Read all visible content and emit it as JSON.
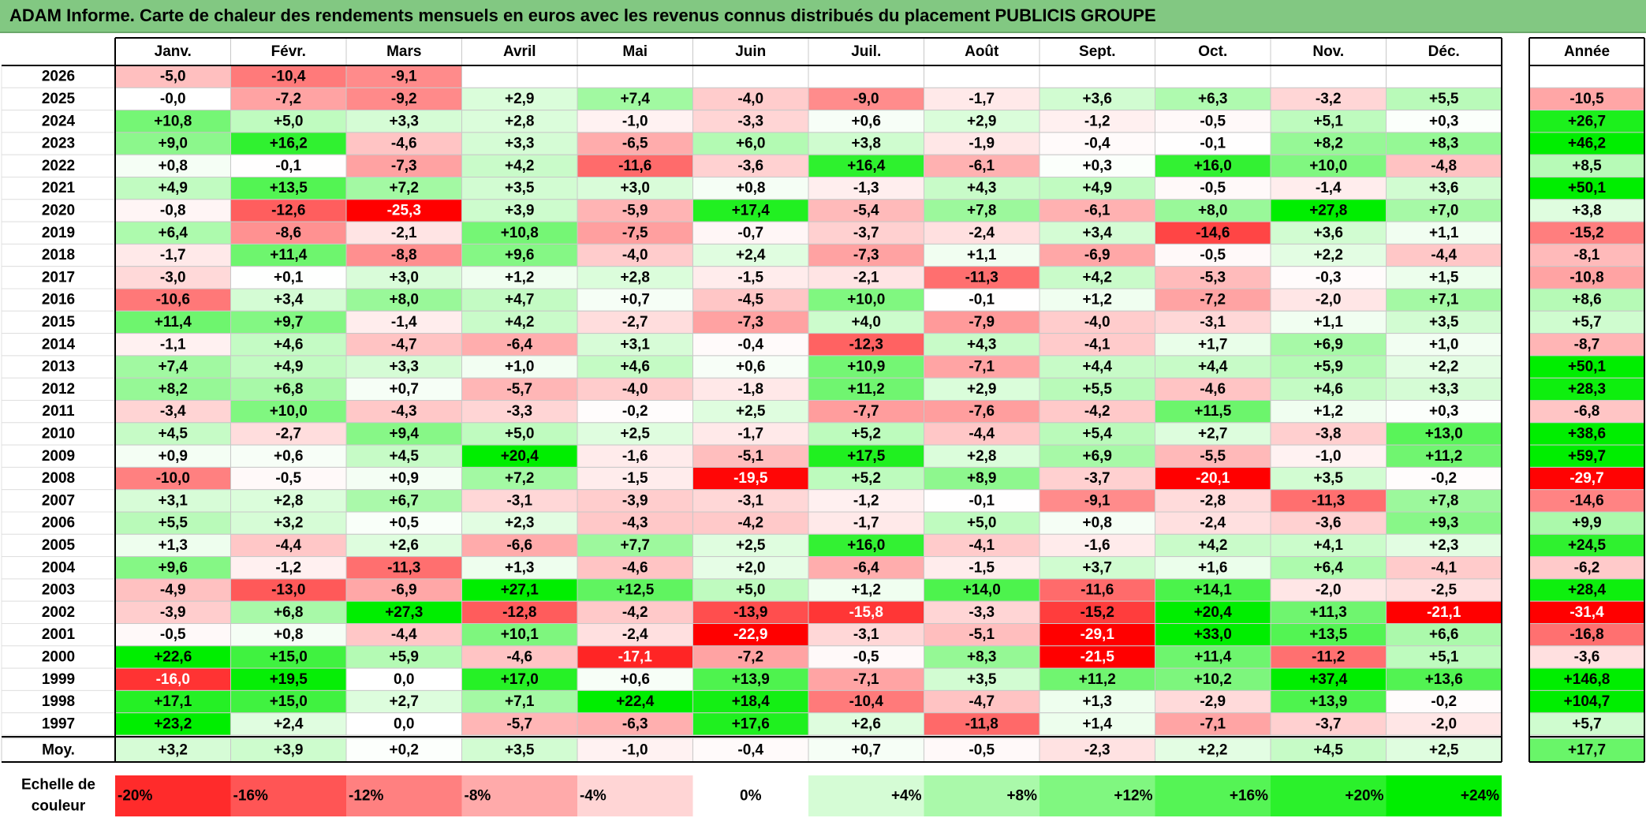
{
  "title": "ADAM Informe. Carte de chaleur des rendements mensuels en euros avec les revenus connus distribués du placement PUBLICIS GROUPE",
  "chart_data": {
    "type": "heatmap",
    "title": "ADAM Informe. Carte de chaleur des rendements mensuels en euros avec les revenus connus distribués du placement PUBLICIS GROUPE",
    "months": [
      "Janv.",
      "Févr.",
      "Mars",
      "Avril",
      "Mai",
      "Juin",
      "Juil.",
      "Août",
      "Sept.",
      "Oct.",
      "Nov.",
      "Déc."
    ],
    "year_header": "Année",
    "avg_label": "Moy.",
    "rows": [
      {
        "year": "2026",
        "values": [
          "-5,0",
          "-10,4",
          "-9,1",
          "",
          "",
          "",
          "",
          "",
          "",
          "",
          "",
          ""
        ],
        "annual": ""
      },
      {
        "year": "2025",
        "values": [
          "-0,0",
          "-7,2",
          "-9,2",
          "+2,9",
          "+7,4",
          "-4,0",
          "-9,0",
          "-1,7",
          "+3,6",
          "+6,3",
          "-3,2",
          "+5,5"
        ],
        "annual": "-10,5"
      },
      {
        "year": "2024",
        "values": [
          "+10,8",
          "+5,0",
          "+3,3",
          "+2,8",
          "-1,0",
          "-3,3",
          "+0,6",
          "+2,9",
          "-1,2",
          "-0,5",
          "+5,1",
          "+0,3"
        ],
        "annual": "+26,7"
      },
      {
        "year": "2023",
        "values": [
          "+9,0",
          "+16,2",
          "-4,6",
          "+3,3",
          "-6,5",
          "+6,0",
          "+3,8",
          "-1,9",
          "-0,4",
          "-0,1",
          "+8,2",
          "+8,3"
        ],
        "annual": "+46,2"
      },
      {
        "year": "2022",
        "values": [
          "+0,8",
          "-0,1",
          "-7,3",
          "+4,2",
          "-11,6",
          "-3,6",
          "+16,4",
          "-6,1",
          "+0,3",
          "+16,0",
          "+10,0",
          "-4,8"
        ],
        "annual": "+8,5"
      },
      {
        "year": "2021",
        "values": [
          "+4,9",
          "+13,5",
          "+7,2",
          "+3,5",
          "+3,0",
          "+0,8",
          "-1,3",
          "+4,3",
          "+4,9",
          "-0,5",
          "-1,4",
          "+3,6"
        ],
        "annual": "+50,1"
      },
      {
        "year": "2020",
        "values": [
          "-0,8",
          "-12,6",
          "-25,3",
          "+3,9",
          "-5,9",
          "+17,4",
          "-5,4",
          "+7,8",
          "-6,1",
          "+8,0",
          "+27,8",
          "+7,0"
        ],
        "annual": "+3,8"
      },
      {
        "year": "2019",
        "values": [
          "+6,4",
          "-8,6",
          "-2,1",
          "+10,8",
          "-7,5",
          "-0,7",
          "-3,7",
          "-2,4",
          "+3,4",
          "-14,6",
          "+3,6",
          "+1,1"
        ],
        "annual": "-15,2"
      },
      {
        "year": "2018",
        "values": [
          "-1,7",
          "+11,4",
          "-8,8",
          "+9,6",
          "-4,0",
          "+2,4",
          "-7,3",
          "+1,1",
          "-6,9",
          "-0,5",
          "+2,2",
          "-4,4"
        ],
        "annual": "-8,1"
      },
      {
        "year": "2017",
        "values": [
          "-3,0",
          "+0,1",
          "+3,0",
          "+1,2",
          "+2,8",
          "-1,5",
          "-2,1",
          "-11,3",
          "+4,2",
          "-5,3",
          "-0,3",
          "+1,5"
        ],
        "annual": "-10,8"
      },
      {
        "year": "2016",
        "values": [
          "-10,6",
          "+3,4",
          "+8,0",
          "+4,7",
          "+0,7",
          "-4,5",
          "+10,0",
          "-0,1",
          "+1,2",
          "-7,2",
          "-2,0",
          "+7,1"
        ],
        "annual": "+8,6"
      },
      {
        "year": "2015",
        "values": [
          "+11,4",
          "+9,7",
          "-1,4",
          "+4,2",
          "-2,7",
          "-7,3",
          "+4,0",
          "-7,9",
          "-4,0",
          "-3,1",
          "+1,1",
          "+3,5"
        ],
        "annual": "+5,7"
      },
      {
        "year": "2014",
        "values": [
          "-1,1",
          "+4,6",
          "-4,7",
          "-6,4",
          "+3,1",
          "-0,4",
          "-12,3",
          "+4,3",
          "-4,1",
          "+1,7",
          "+6,9",
          "+1,0"
        ],
        "annual": "-8,7"
      },
      {
        "year": "2013",
        "values": [
          "+7,4",
          "+4,9",
          "+3,3",
          "+1,0",
          "+4,6",
          "+0,6",
          "+10,9",
          "-7,1",
          "+4,4",
          "+4,4",
          "+5,9",
          "+2,2"
        ],
        "annual": "+50,1"
      },
      {
        "year": "2012",
        "values": [
          "+8,2",
          "+6,8",
          "+0,7",
          "-5,7",
          "-4,0",
          "-1,8",
          "+11,2",
          "+2,9",
          "+5,5",
          "-4,6",
          "+4,6",
          "+3,3"
        ],
        "annual": "+28,3"
      },
      {
        "year": "2011",
        "values": [
          "-3,4",
          "+10,0",
          "-4,3",
          "-3,3",
          "-0,2",
          "+2,5",
          "-7,7",
          "-7,6",
          "-4,2",
          "+11,5",
          "+1,2",
          "+0,3"
        ],
        "annual": "-6,8"
      },
      {
        "year": "2010",
        "values": [
          "+4,5",
          "-2,7",
          "+9,4",
          "+5,0",
          "+2,5",
          "-1,7",
          "+5,2",
          "-4,4",
          "+5,4",
          "+2,7",
          "-3,8",
          "+13,0"
        ],
        "annual": "+38,6"
      },
      {
        "year": "2009",
        "values": [
          "+0,9",
          "+0,6",
          "+4,5",
          "+20,4",
          "-1,6",
          "-5,1",
          "+17,5",
          "+2,8",
          "+6,9",
          "-5,5",
          "-1,0",
          "+11,2"
        ],
        "annual": "+59,7"
      },
      {
        "year": "2008",
        "values": [
          "-10,0",
          "-0,5",
          "+0,9",
          "+7,2",
          "-1,5",
          "-19,5",
          "+5,2",
          "+8,9",
          "-3,7",
          "-20,1",
          "+3,5",
          "-0,2"
        ],
        "annual": "-29,7"
      },
      {
        "year": "2007",
        "values": [
          "+3,1",
          "+2,8",
          "+6,7",
          "-3,1",
          "-3,9",
          "-3,1",
          "-1,2",
          "-0,1",
          "-9,1",
          "-2,8",
          "-11,3",
          "+7,8"
        ],
        "annual": "-14,6"
      },
      {
        "year": "2006",
        "values": [
          "+5,5",
          "+3,2",
          "+0,5",
          "+2,3",
          "-4,3",
          "-4,2",
          "-1,7",
          "+5,0",
          "+0,8",
          "-2,4",
          "-3,6",
          "+9,3"
        ],
        "annual": "+9,9"
      },
      {
        "year": "2005",
        "values": [
          "+1,3",
          "-4,4",
          "+2,6",
          "-6,6",
          "+7,7",
          "+2,5",
          "+16,0",
          "-4,1",
          "-1,6",
          "+4,2",
          "+4,1",
          "+2,3"
        ],
        "annual": "+24,5"
      },
      {
        "year": "2004",
        "values": [
          "+9,6",
          "-1,2",
          "-11,3",
          "+1,3",
          "-4,6",
          "+2,0",
          "-6,4",
          "-1,5",
          "+3,7",
          "+1,6",
          "+6,4",
          "-4,1"
        ],
        "annual": "-6,2"
      },
      {
        "year": "2003",
        "values": [
          "-4,9",
          "-13,0",
          "-6,9",
          "+27,1",
          "+12,5",
          "+5,0",
          "+1,2",
          "+14,0",
          "-11,6",
          "+14,1",
          "-2,0",
          "-2,5"
        ],
        "annual": "+28,4"
      },
      {
        "year": "2002",
        "values": [
          "-3,9",
          "+6,8",
          "+27,3",
          "-12,8",
          "-4,2",
          "-13,9",
          "-15,8",
          "-3,3",
          "-15,2",
          "+20,4",
          "+11,3",
          "-21,1"
        ],
        "annual": "-31,4"
      },
      {
        "year": "2001",
        "values": [
          "-0,5",
          "+0,8",
          "-4,4",
          "+10,1",
          "-2,4",
          "-22,9",
          "-3,1",
          "-5,1",
          "-29,1",
          "+33,0",
          "+13,5",
          "+6,6"
        ],
        "annual": "-16,8"
      },
      {
        "year": "2000",
        "values": [
          "+22,6",
          "+15,0",
          "+5,9",
          "-4,6",
          "-17,1",
          "-7,2",
          "-0,5",
          "+8,3",
          "-21,5",
          "+11,4",
          "-11,2",
          "+5,1"
        ],
        "annual": "-3,6"
      },
      {
        "year": "1999",
        "values": [
          "-16,0",
          "+19,5",
          "0,0",
          "+17,0",
          "+0,6",
          "+13,9",
          "-7,1",
          "+3,5",
          "+11,2",
          "+10,2",
          "+37,4",
          "+13,6"
        ],
        "annual": "+146,8"
      },
      {
        "year": "1998",
        "values": [
          "+17,1",
          "+15,0",
          "+2,7",
          "+7,1",
          "+22,4",
          "+18,4",
          "-10,4",
          "-4,7",
          "+1,3",
          "-2,9",
          "+13,9",
          "-0,2"
        ],
        "annual": "+104,7"
      },
      {
        "year": "1997",
        "values": [
          "+23,2",
          "+2,4",
          "0,0",
          "-5,7",
          "-6,3",
          "+17,6",
          "+2,6",
          "-11,8",
          "+1,4",
          "-7,1",
          "-3,7",
          "-2,0"
        ],
        "annual": "+5,7"
      }
    ],
    "averages": [
      "+3,2",
      "+3,9",
      "+0,2",
      "+3,5",
      "-1,0",
      "-0,4",
      "+0,7",
      "-0,5",
      "-2,3",
      "+2,2",
      "+4,5",
      "+2,5"
    ],
    "avg_annual": "+17,7",
    "scale_label": [
      "Echelle de",
      "couleur"
    ],
    "scale": [
      {
        "label": "-20%",
        "value": -20
      },
      {
        "label": "-16%",
        "value": -16
      },
      {
        "label": "-12%",
        "value": -12
      },
      {
        "label": "-8%",
        "value": -8
      },
      {
        "label": "-4%",
        "value": -4
      },
      {
        "label": "0%",
        "value": 0
      },
      {
        "label": "+4%",
        "value": 4
      },
      {
        "label": "+8%",
        "value": 8
      },
      {
        "label": "+12%",
        "value": 12
      },
      {
        "label": "+16%",
        "value": 16
      },
      {
        "label": "+20%",
        "value": 20
      },
      {
        "label": "+24%",
        "value": 24
      }
    ],
    "colors": {
      "negative": "#ff0000",
      "neutral": "#ffffff",
      "positive": "#00ee00"
    }
  }
}
